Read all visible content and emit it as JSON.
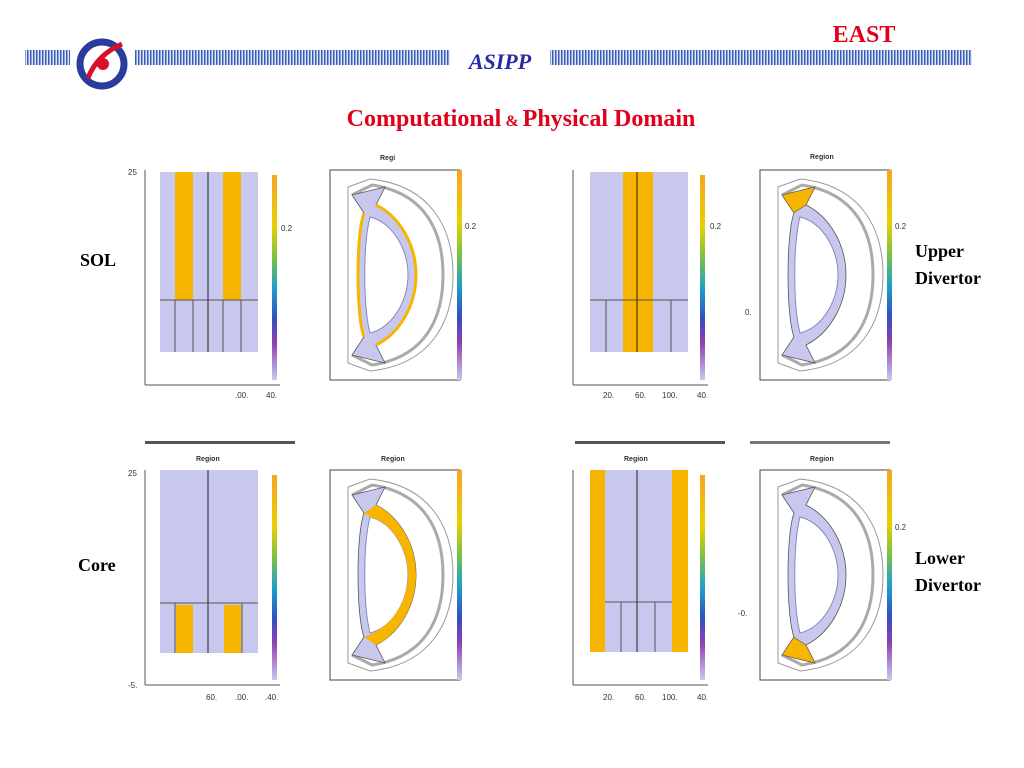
{
  "header": {
    "brand": "EAST",
    "institute": "ASIPP"
  },
  "title": {
    "part1": "Computational",
    "amp": "&",
    "part2": "Physical Domain"
  },
  "labels": {
    "sol": "SOL",
    "upper": [
      "Upper",
      "Divertor"
    ],
    "core": "Core",
    "lower": [
      "Lower",
      "Divertor"
    ]
  },
  "panels": [
    {
      "comp_ticks": [
        "25",
        ".00.",
        "40."
      ],
      "comp_colorbar": "0.2",
      "phys_title": "Regi",
      "phys_colorbar": "0.2"
    },
    {
      "comp_ticks": [
        "20.",
        "60.",
        "100.",
        "40."
      ],
      "comp_colorbar": "0.2",
      "phys_title": "Region",
      "phys_colorbar": "0.2",
      "phys_axis": "0."
    },
    {
      "comp_title": "Region",
      "comp_ticks": [
        "25",
        "-5.",
        "60.",
        ".00.",
        ".40."
      ],
      "phys_title": "Region"
    },
    {
      "comp_title": "Region",
      "comp_ticks": [
        "20.",
        "60.",
        "100.",
        "40."
      ],
      "phys_title": "Region",
      "phys_colorbar": "0.2",
      "phys_axis": "-0."
    }
  ]
}
